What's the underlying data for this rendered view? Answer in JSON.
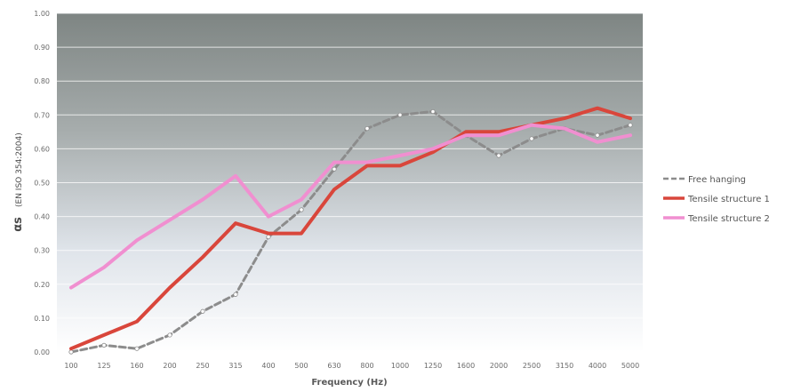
{
  "chart_data": {
    "type": "line",
    "title": "",
    "xlabel": "Frequency (Hz)",
    "ylabel_main": "αs",
    "ylabel_sub": "(EN ISO 354:2004)",
    "x": [
      "100",
      "125",
      "160",
      "200",
      "250",
      "315",
      "400",
      "500",
      "630",
      "800",
      "1000",
      "1250",
      "1600",
      "2000",
      "2500",
      "3150",
      "4000",
      "5000"
    ],
    "ylim": [
      0,
      1
    ],
    "yticks": [
      "0.00",
      "0.10",
      "0.20",
      "0.30",
      "0.40",
      "0.50",
      "0.60",
      "0.70",
      "0.80",
      "0.90",
      "1.00"
    ],
    "grid": true,
    "legend_position": "right",
    "series": [
      {
        "name": "Free hanging",
        "color": "#8c8c8c",
        "dash": true,
        "markers": true,
        "values": [
          0.0,
          0.02,
          0.01,
          0.05,
          0.12,
          0.17,
          0.34,
          0.42,
          0.54,
          0.66,
          0.7,
          0.71,
          0.64,
          0.58,
          0.63,
          0.66,
          0.64,
          0.67
        ]
      },
      {
        "name": "Tensile structure 1",
        "color": "#d9463b",
        "dash": false,
        "markers": false,
        "values": [
          0.01,
          0.05,
          0.09,
          0.19,
          0.28,
          0.38,
          0.35,
          0.35,
          0.48,
          0.55,
          0.55,
          0.59,
          0.65,
          0.65,
          0.67,
          0.69,
          0.72,
          0.69
        ]
      },
      {
        "name": "Tensile structure 2",
        "color": "#f08fd0",
        "dash": false,
        "markers": false,
        "values": [
          0.19,
          0.25,
          0.33,
          0.39,
          0.45,
          0.52,
          0.4,
          0.45,
          0.56,
          0.56,
          0.58,
          0.6,
          0.64,
          0.64,
          0.67,
          0.66,
          0.62,
          0.64
        ]
      }
    ]
  }
}
